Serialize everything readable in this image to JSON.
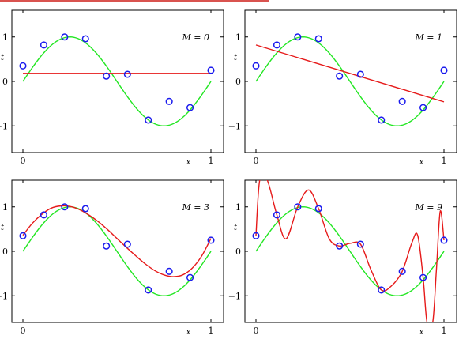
{
  "colors": {
    "frame": "#000000",
    "truth": "#22e622",
    "fit": "#e61a1a",
    "points": "#1a1aee",
    "rule": "#d9534f"
  },
  "chart_data": [
    {
      "type": "line",
      "title": "M = 0",
      "order": 0,
      "xlabel": "x",
      "ylabel": "t",
      "xlim": [
        0,
        1
      ],
      "ylim": [
        -1.6,
        1.6
      ],
      "xticks": [
        "0",
        "1"
      ],
      "yticks": [
        "1",
        "0",
        "−1"
      ],
      "grid": false,
      "points": {
        "x": [
          0,
          0.111,
          0.222,
          0.333,
          0.444,
          0.556,
          0.667,
          0.778,
          0.889,
          1.0
        ],
        "y": [
          0.35,
          0.82,
          1.0,
          0.96,
          0.12,
          0.16,
          -0.87,
          -0.45,
          -0.59,
          0.25
        ]
      },
      "fit": {
        "x": [
          0,
          1
        ],
        "y": [
          0.18,
          0.18
        ]
      }
    },
    {
      "type": "line",
      "title": "M = 1",
      "order": 1,
      "xlabel": "x",
      "ylabel": "t",
      "xlim": [
        0,
        1
      ],
      "ylim": [
        -1.6,
        1.6
      ],
      "xticks": [
        "0",
        "1"
      ],
      "yticks": [
        "1",
        "0",
        "−1"
      ],
      "grid": false,
      "points": {
        "x": [
          0,
          0.111,
          0.222,
          0.333,
          0.444,
          0.556,
          0.667,
          0.778,
          0.889,
          1.0
        ],
        "y": [
          0.35,
          0.82,
          1.0,
          0.96,
          0.12,
          0.16,
          -0.87,
          -0.45,
          -0.59,
          0.25
        ]
      },
      "fit": {
        "x": [
          0,
          1
        ],
        "y": [
          0.82,
          -0.46
        ]
      }
    },
    {
      "type": "line",
      "title": "M = 3",
      "order": 3,
      "xlabel": "x",
      "ylabel": "t",
      "xlim": [
        0,
        1
      ],
      "ylim": [
        -1.6,
        1.6
      ],
      "xticks": [
        "0",
        "1"
      ],
      "yticks": [
        "1",
        "0",
        "−1"
      ],
      "grid": false,
      "points": {
        "x": [
          0,
          0.111,
          0.222,
          0.333,
          0.444,
          0.556,
          0.667,
          0.778,
          0.889,
          1.0
        ],
        "y": [
          0.35,
          0.82,
          1.0,
          0.96,
          0.12,
          0.16,
          -0.87,
          -0.45,
          -0.59,
          0.25
        ]
      },
      "fit": {
        "x": [
          0,
          0.05,
          0.1,
          0.15,
          0.2,
          0.25,
          0.3,
          0.35,
          0.4,
          0.45,
          0.5,
          0.55,
          0.6,
          0.65,
          0.7,
          0.75,
          0.8,
          0.85,
          0.9,
          0.95,
          1.0
        ],
        "y": [
          0.36,
          0.63,
          0.83,
          0.97,
          1.02,
          1.01,
          0.94,
          0.82,
          0.67,
          0.49,
          0.29,
          0.09,
          -0.1,
          -0.28,
          -0.43,
          -0.53,
          -0.57,
          -0.53,
          -0.38,
          -0.11,
          0.29
        ]
      }
    },
    {
      "type": "line",
      "title": "M = 9",
      "order": 9,
      "xlabel": "x",
      "ylabel": "t",
      "xlim": [
        0,
        1
      ],
      "ylim": [
        -1.6,
        1.6
      ],
      "xticks": [
        "0",
        "1"
      ],
      "yticks": [
        "1",
        "0",
        "−1"
      ],
      "grid": false,
      "points": {
        "x": [
          0,
          0.111,
          0.222,
          0.333,
          0.444,
          0.556,
          0.667,
          0.778,
          0.889,
          1.0
        ],
        "y": [
          0.35,
          0.82,
          1.0,
          0.96,
          0.12,
          0.16,
          -0.87,
          -0.45,
          -0.59,
          0.25
        ]
      },
      "fit": {
        "x": [
          0,
          0.02,
          0.06,
          0.111,
          0.16,
          0.222,
          0.28,
          0.333,
          0.39,
          0.444,
          0.5,
          0.556,
          0.61,
          0.667,
          0.72,
          0.778,
          0.83,
          0.86,
          0.889,
          0.91,
          0.94,
          0.96,
          0.98,
          1.0
        ],
        "y": [
          0.35,
          1.6,
          1.6,
          0.82,
          0.28,
          1.0,
          1.38,
          0.96,
          0.28,
          0.12,
          0.18,
          0.16,
          -0.4,
          -0.87,
          -0.78,
          -0.45,
          0.2,
          0.36,
          -0.59,
          -1.6,
          -1.6,
          -0.4,
          0.9,
          0.25
        ]
      }
    }
  ]
}
